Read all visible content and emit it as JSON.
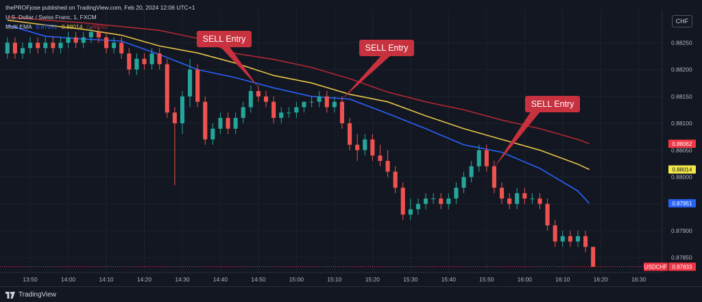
{
  "header": {
    "publish_line": "thePROFjose published on TradingView.com, Feb 20, 2024 12:06 UTC+1",
    "symbol_line": "U.S. Dollar / Swiss Franc, 1, FXCM",
    "indicator_name": "Multi EMA",
    "ema_values": [
      "0.87951",
      "0.88014",
      "0.88062"
    ]
  },
  "currency_button": "CHF",
  "footer": {
    "brand": "TradingView"
  },
  "colors": {
    "background": "#131722",
    "up": "#26a69a",
    "down": "#ef5350",
    "ema_fast": "#2962ff",
    "ema_mid": "#e8c547",
    "ema_slow": "#b22833",
    "callout": "#c8313e"
  },
  "chart_data": {
    "type": "candlestick",
    "symbol": "USDCHF",
    "timeframe": "1",
    "x_tick_labels": [
      "13:50",
      "14:00",
      "14:10",
      "14:20",
      "14:30",
      "14:40",
      "14:50",
      "15:00",
      "15:10",
      "15:20",
      "15:30",
      "15:40",
      "15:50",
      "16:00",
      "16:10",
      "16:20",
      "16:30"
    ],
    "y_tick_labels": [
      "0.87850",
      "0.87900",
      "0.87950",
      "0.88000",
      "0.88050",
      "0.88100",
      "0.88150",
      "0.88200",
      "0.88250"
    ],
    "ylim": [
      0.87826,
      0.88304
    ],
    "price_labels": [
      {
        "text": "0.88062",
        "value": 0.88062,
        "color": "#f23645"
      },
      {
        "text": "0.88014",
        "value": 0.88014,
        "color": "#f3e84a"
      },
      {
        "text": "0.87951",
        "value": 0.87951,
        "color": "#2962ff"
      },
      {
        "text": "USDCHF",
        "value": 0.87833,
        "color": "#f23645",
        "prefix": true
      },
      {
        "text": "0.87833",
        "value": 0.87833,
        "color": "#f23645"
      }
    ],
    "last_price": 0.87833,
    "ema": {
      "times": [
        "13:44",
        "13:54",
        "14:04",
        "14:14",
        "14:24",
        "14:34",
        "14:44",
        "14:54",
        "15:04",
        "15:14",
        "15:24",
        "15:34",
        "15:44",
        "15:54",
        "16:04",
        "16:14",
        "16:17"
      ],
      "fast": [
        0.88283,
        0.88262,
        0.88257,
        0.88253,
        0.88228,
        0.882,
        0.88185,
        0.88166,
        0.8815,
        0.88145,
        0.88118,
        0.8809,
        0.8806,
        0.88046,
        0.88016,
        0.87974,
        0.87951
      ],
      "mid": [
        0.88292,
        0.88283,
        0.88275,
        0.88264,
        0.88244,
        0.88231,
        0.88212,
        0.88189,
        0.88175,
        0.88154,
        0.8814,
        0.88114,
        0.8809,
        0.8807,
        0.8805,
        0.88024,
        0.88014
      ],
      "slow": [
        0.88298,
        0.88292,
        0.88287,
        0.8828,
        0.88273,
        0.88258,
        0.8823,
        0.88219,
        0.88204,
        0.88183,
        0.88158,
        0.8814,
        0.88125,
        0.88106,
        0.8809,
        0.8807,
        0.88062
      ]
    },
    "candles": [
      {
        "t": "13:44",
        "o": 0.8823,
        "h": 0.8826,
        "l": 0.8822,
        "c": 0.8825
      },
      {
        "t": "13:46",
        "o": 0.8825,
        "h": 0.8826,
        "l": 0.8822,
        "c": 0.8823
      },
      {
        "t": "13:48",
        "o": 0.8823,
        "h": 0.8825,
        "l": 0.8822,
        "c": 0.8824
      },
      {
        "t": "13:50",
        "o": 0.8824,
        "h": 0.8826,
        "l": 0.8823,
        "c": 0.8825
      },
      {
        "t": "13:52",
        "o": 0.8825,
        "h": 0.8826,
        "l": 0.8823,
        "c": 0.8824
      },
      {
        "t": "13:54",
        "o": 0.8824,
        "h": 0.8826,
        "l": 0.8823,
        "c": 0.8825
      },
      {
        "t": "13:56",
        "o": 0.8825,
        "h": 0.8826,
        "l": 0.8823,
        "c": 0.8824
      },
      {
        "t": "13:58",
        "o": 0.8824,
        "h": 0.8826,
        "l": 0.8823,
        "c": 0.8825
      },
      {
        "t": "14:00",
        "o": 0.8825,
        "h": 0.8827,
        "l": 0.8824,
        "c": 0.8826
      },
      {
        "t": "14:02",
        "o": 0.8826,
        "h": 0.8827,
        "l": 0.8824,
        "c": 0.8825
      },
      {
        "t": "14:04",
        "o": 0.8825,
        "h": 0.8827,
        "l": 0.8824,
        "c": 0.8826
      },
      {
        "t": "14:06",
        "o": 0.8826,
        "h": 0.8828,
        "l": 0.8825,
        "c": 0.8827
      },
      {
        "t": "14:08",
        "o": 0.8827,
        "h": 0.8828,
        "l": 0.8825,
        "c": 0.8826
      },
      {
        "t": "14:10",
        "o": 0.8826,
        "h": 0.8827,
        "l": 0.8823,
        "c": 0.8824
      },
      {
        "t": "14:12",
        "o": 0.8824,
        "h": 0.8826,
        "l": 0.8823,
        "c": 0.8825
      },
      {
        "t": "14:14",
        "o": 0.8825,
        "h": 0.8826,
        "l": 0.8822,
        "c": 0.8823
      },
      {
        "t": "14:16",
        "o": 0.8823,
        "h": 0.8824,
        "l": 0.8819,
        "c": 0.882
      },
      {
        "t": "14:18",
        "o": 0.882,
        "h": 0.8823,
        "l": 0.8819,
        "c": 0.8822
      },
      {
        "t": "14:20",
        "o": 0.8822,
        "h": 0.8823,
        "l": 0.882,
        "c": 0.8821
      },
      {
        "t": "14:22",
        "o": 0.8821,
        "h": 0.8824,
        "l": 0.882,
        "c": 0.8823
      },
      {
        "t": "14:24",
        "o": 0.8823,
        "h": 0.8824,
        "l": 0.882,
        "c": 0.8821
      },
      {
        "t": "14:26",
        "o": 0.8821,
        "h": 0.8822,
        "l": 0.8811,
        "c": 0.8812
      },
      {
        "t": "14:28",
        "o": 0.8812,
        "h": 0.8813,
        "l": 0.87985,
        "c": 0.881
      },
      {
        "t": "14:30",
        "o": 0.881,
        "h": 0.8816,
        "l": 0.8808,
        "c": 0.8815
      },
      {
        "t": "14:32",
        "o": 0.8815,
        "h": 0.8822,
        "l": 0.8813,
        "c": 0.882
      },
      {
        "t": "14:34",
        "o": 0.882,
        "h": 0.8821,
        "l": 0.8813,
        "c": 0.8814
      },
      {
        "t": "14:36",
        "o": 0.8814,
        "h": 0.8815,
        "l": 0.8806,
        "c": 0.8807
      },
      {
        "t": "14:38",
        "o": 0.8807,
        "h": 0.881,
        "l": 0.8806,
        "c": 0.8809
      },
      {
        "t": "14:40",
        "o": 0.8809,
        "h": 0.8812,
        "l": 0.8808,
        "c": 0.8811
      },
      {
        "t": "14:42",
        "o": 0.8811,
        "h": 0.8812,
        "l": 0.8808,
        "c": 0.8809
      },
      {
        "t": "14:44",
        "o": 0.8809,
        "h": 0.8812,
        "l": 0.8808,
        "c": 0.8811
      },
      {
        "t": "14:46",
        "o": 0.8811,
        "h": 0.8814,
        "l": 0.881,
        "c": 0.8813
      },
      {
        "t": "14:48",
        "o": 0.8813,
        "h": 0.8817,
        "l": 0.8812,
        "c": 0.8816
      },
      {
        "t": "14:50",
        "o": 0.8816,
        "h": 0.8817,
        "l": 0.8814,
        "c": 0.8815
      },
      {
        "t": "14:52",
        "o": 0.8815,
        "h": 0.8816,
        "l": 0.8813,
        "c": 0.8814
      },
      {
        "t": "14:54",
        "o": 0.8814,
        "h": 0.8815,
        "l": 0.881,
        "c": 0.8811
      },
      {
        "t": "14:56",
        "o": 0.8811,
        "h": 0.8813,
        "l": 0.881,
        "c": 0.8812
      },
      {
        "t": "14:58",
        "o": 0.8812,
        "h": 0.8813,
        "l": 0.8811,
        "c": 0.8812
      },
      {
        "t": "15:00",
        "o": 0.8812,
        "h": 0.8814,
        "l": 0.8811,
        "c": 0.8813
      },
      {
        "t": "15:02",
        "o": 0.8813,
        "h": 0.8814,
        "l": 0.8812,
        "c": 0.8814
      },
      {
        "t": "15:04",
        "o": 0.8814,
        "h": 0.8815,
        "l": 0.8813,
        "c": 0.8814
      },
      {
        "t": "15:06",
        "o": 0.8814,
        "h": 0.8816,
        "l": 0.8813,
        "c": 0.8815
      },
      {
        "t": "15:08",
        "o": 0.8815,
        "h": 0.8816,
        "l": 0.8812,
        "c": 0.8813
      },
      {
        "t": "15:10",
        "o": 0.8813,
        "h": 0.8815,
        "l": 0.8812,
        "c": 0.8814
      },
      {
        "t": "15:12",
        "o": 0.8814,
        "h": 0.8815,
        "l": 0.8809,
        "c": 0.881
      },
      {
        "t": "15:14",
        "o": 0.881,
        "h": 0.8811,
        "l": 0.8805,
        "c": 0.8806
      },
      {
        "t": "15:16",
        "o": 0.8806,
        "h": 0.8808,
        "l": 0.8803,
        "c": 0.8805
      },
      {
        "t": "15:18",
        "o": 0.8805,
        "h": 0.8808,
        "l": 0.8804,
        "c": 0.8807
      },
      {
        "t": "15:20",
        "o": 0.8807,
        "h": 0.8808,
        "l": 0.8803,
        "c": 0.8804
      },
      {
        "t": "15:22",
        "o": 0.8804,
        "h": 0.8806,
        "l": 0.8802,
        "c": 0.8803
      },
      {
        "t": "15:24",
        "o": 0.8803,
        "h": 0.8805,
        "l": 0.88,
        "c": 0.8801
      },
      {
        "t": "15:26",
        "o": 0.8801,
        "h": 0.8802,
        "l": 0.8797,
        "c": 0.8798
      },
      {
        "t": "15:28",
        "o": 0.8798,
        "h": 0.8799,
        "l": 0.8792,
        "c": 0.8793
      },
      {
        "t": "15:30",
        "o": 0.8793,
        "h": 0.8796,
        "l": 0.8792,
        "c": 0.8794
      },
      {
        "t": "15:32",
        "o": 0.8794,
        "h": 0.8796,
        "l": 0.8793,
        "c": 0.8795
      },
      {
        "t": "15:34",
        "o": 0.8795,
        "h": 0.8797,
        "l": 0.8794,
        "c": 0.8796
      },
      {
        "t": "15:36",
        "o": 0.8796,
        "h": 0.8797,
        "l": 0.8795,
        "c": 0.8796
      },
      {
        "t": "15:38",
        "o": 0.8796,
        "h": 0.8797,
        "l": 0.8794,
        "c": 0.8795
      },
      {
        "t": "15:40",
        "o": 0.8795,
        "h": 0.8797,
        "l": 0.8794,
        "c": 0.8796
      },
      {
        "t": "15:42",
        "o": 0.8796,
        "h": 0.8799,
        "l": 0.8795,
        "c": 0.8798
      },
      {
        "t": "15:44",
        "o": 0.8798,
        "h": 0.8801,
        "l": 0.8797,
        "c": 0.88
      },
      {
        "t": "15:46",
        "o": 0.88,
        "h": 0.8803,
        "l": 0.8799,
        "c": 0.8802
      },
      {
        "t": "15:48",
        "o": 0.8802,
        "h": 0.8806,
        "l": 0.8801,
        "c": 0.8805
      },
      {
        "t": "15:50",
        "o": 0.8805,
        "h": 0.8806,
        "l": 0.8801,
        "c": 0.8802
      },
      {
        "t": "15:52",
        "o": 0.8802,
        "h": 0.8803,
        "l": 0.8797,
        "c": 0.8798
      },
      {
        "t": "15:54",
        "o": 0.8798,
        "h": 0.8799,
        "l": 0.8795,
        "c": 0.8796
      },
      {
        "t": "15:56",
        "o": 0.8796,
        "h": 0.8797,
        "l": 0.8794,
        "c": 0.8795
      },
      {
        "t": "15:58",
        "o": 0.8795,
        "h": 0.8798,
        "l": 0.8794,
        "c": 0.8797
      },
      {
        "t": "16:00",
        "o": 0.8797,
        "h": 0.8798,
        "l": 0.8795,
        "c": 0.8796
      },
      {
        "t": "16:02",
        "o": 0.8796,
        "h": 0.8797,
        "l": 0.8795,
        "c": 0.8796
      },
      {
        "t": "16:04",
        "o": 0.8796,
        "h": 0.8797,
        "l": 0.8794,
        "c": 0.8795
      },
      {
        "t": "16:06",
        "o": 0.8795,
        "h": 0.8796,
        "l": 0.879,
        "c": 0.8791
      },
      {
        "t": "16:08",
        "o": 0.8791,
        "h": 0.8792,
        "l": 0.8787,
        "c": 0.8788
      },
      {
        "t": "16:10",
        "o": 0.8788,
        "h": 0.879,
        "l": 0.8787,
        "c": 0.8789
      },
      {
        "t": "16:12",
        "o": 0.8789,
        "h": 0.879,
        "l": 0.8787,
        "c": 0.8788
      },
      {
        "t": "16:14",
        "o": 0.8788,
        "h": 0.879,
        "l": 0.8787,
        "c": 0.8789
      },
      {
        "t": "16:16",
        "o": 0.8789,
        "h": 0.879,
        "l": 0.8786,
        "c": 0.8787
      },
      {
        "t": "16:18",
        "o": 0.8787,
        "h": 0.8787,
        "l": 0.87833,
        "c": 0.87833
      }
    ],
    "annotations": [
      {
        "text": "SELL Entry",
        "time": "14:50",
        "price": 0.88167
      },
      {
        "text": "SELL Entry",
        "time": "15:12",
        "price": 0.88145
      },
      {
        "text": "SELL Entry",
        "time": "15:52",
        "price": 0.88018
      }
    ]
  }
}
